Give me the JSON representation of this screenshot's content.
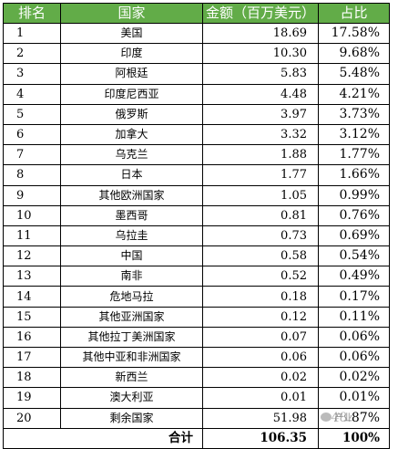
{
  "table": {
    "headers": {
      "rank": "排名",
      "country": "国家",
      "amount": "金额（百万美元）",
      "share": "占比"
    },
    "rows": [
      {
        "rank": "1",
        "country": "美国",
        "amount": "18.69",
        "share": "17.58%"
      },
      {
        "rank": "2",
        "country": "印度",
        "amount": "10.30",
        "share": "9.68%"
      },
      {
        "rank": "3",
        "country": "阿根廷",
        "amount": "5.83",
        "share": "5.48%"
      },
      {
        "rank": "4",
        "country": "印度尼西亚",
        "amount": "4.48",
        "share": "4.21%"
      },
      {
        "rank": "5",
        "country": "俄罗斯",
        "amount": "3.97",
        "share": "3.73%"
      },
      {
        "rank": "6",
        "country": "加拿大",
        "amount": "3.32",
        "share": "3.12%"
      },
      {
        "rank": "7",
        "country": "乌克兰",
        "amount": "1.88",
        "share": "1.77%"
      },
      {
        "rank": "8",
        "country": "日本",
        "amount": "1.77",
        "share": "1.66%"
      },
      {
        "rank": "9",
        "country": "其他欧洲国家",
        "amount": "1.05",
        "share": "0.99%"
      },
      {
        "rank": "10",
        "country": "墨西哥",
        "amount": "0.81",
        "share": "0.76%"
      },
      {
        "rank": "11",
        "country": "乌拉圭",
        "amount": "0.73",
        "share": "0.69%"
      },
      {
        "rank": "12",
        "country": "中国",
        "amount": "0.58",
        "share": "0.54%"
      },
      {
        "rank": "13",
        "country": "南非",
        "amount": "0.52",
        "share": "0.49%"
      },
      {
        "rank": "14",
        "country": "危地马拉",
        "amount": "0.18",
        "share": "0.17%"
      },
      {
        "rank": "15",
        "country": "其他亚洲国家",
        "amount": "0.12",
        "share": "0.11%"
      },
      {
        "rank": "16",
        "country": "其他拉丁美洲国家",
        "amount": "0.07",
        "share": "0.06%"
      },
      {
        "rank": "17",
        "country": "其他中亚和非洲国家",
        "amount": "0.06",
        "share": "0.06%"
      },
      {
        "rank": "18",
        "country": "新西兰",
        "amount": "0.02",
        "share": "0.02%"
      },
      {
        "rank": "19",
        "country": "澳大利亚",
        "amount": "0.01",
        "share": "0.01%"
      },
      {
        "rank": "20",
        "country": "剩余国家",
        "amount": "51.98",
        "share": "48.87%"
      }
    ],
    "total": {
      "label": "合计",
      "amount": "106.35",
      "share": "100%"
    }
  },
  "watermark": {
    "text": "产业"
  },
  "colors": {
    "header_bg": "#62ac48",
    "header_text": "#ffffff"
  }
}
